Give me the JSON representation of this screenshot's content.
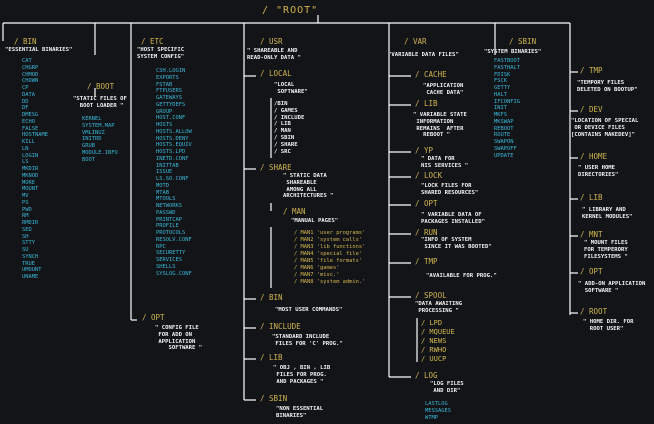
{
  "root": {
    "title": "/   \"ROOT\""
  },
  "bin": {
    "name": "/ BIN",
    "desc": "\"ESSENTIAL BINARIES\"",
    "files_text": "CAT\nCHGRP\nCHMOD\nCHOWN\nCP\nDATA\nDD\nDF\nDMESG\nECHO\nFALSE\nHOSTNAME\nKILL\nLN\nLOGIN\nLS\nMKDIR\nMKNOD\nMORE\nMOUNT\nMV\nPS\nPWD\nRM\nRMDIR\nSED\nSH\nSTTY\nSU\nSYNCH\nTRUE\nUMOUNT\nUNAME"
  },
  "boot": {
    "name": "/ BOOT",
    "desc": "\"STATIC FILES OF\n  BOOT LOADER \"",
    "files_text": "KERNEL\nSYSTEM.MAP\nVMLINUZ\nINITRD\nGRUB\nMODULE.INFO\nBOOT"
  },
  "etc": {
    "name": "/ ETC",
    "desc": "\"HOST SPECIFIC\nSYSTEM CONFIG\"",
    "files_text": "CSH.LOGIN\nEXPORTS\nFSTAB\nFTPUSERS\nGATEWAYS\nGETTYDEFS\nGROUP\nHOST.CONF\nHOSTS\nHOSTS.ALLOW\nHOSTS.DENY\nHOSTS.EQUIV\nHOSTS.LPD\nINETD.CONF\nINITTAB\nISSUE\nLS.SO.CONF\nMOTD\nMTAB\nMTOOLS\nNETWORKS\nPASSWD\nPRINTCAP\nPROFILE\nPROTOCOLS\nRESOLV.CONF\nRPC\nSECURETTY\nSERVICES\nSHELLS\nSYSLOG.CONF",
    "opt": {
      "name": "/ OPT",
      "desc": "\" CONFIG FILE\n FOR ADD ON\n APPLICATION\n    SOFTWARE \""
    }
  },
  "usr": {
    "name": "/ USR",
    "desc": "\" SHAREABLE AND\nREAD-ONLY DATA \"",
    "local": {
      "name": "/ LOCAL",
      "desc": "\"LOCAL\n SOFTWARE\"",
      "subdirs_text": "/BIN\n/ GAMES\n/ INCLUDE\n/ LIB\n/ MAN\n/ SBIN\n/ SHARE\n/ SRC"
    },
    "share": {
      "name": "/ SHARE",
      "desc": "\" STATIC DATA\n SHAREABLE\n AMONG ALL\nARCHITECTURES \"",
      "man": {
        "name": "/ MAN",
        "desc": "\"MANUAL PAGES\"",
        "sections_text": "/ MAN1 'user programs'\n/ MAN2 'system calls'\n/ MAN3 'lib functions'\n/ MAN4 'special file'\n/ MAN5 'file formats'\n/ MAN6 'games'\n/ MAN7 'misc.'\n/ MAN8 'system admin.'"
      }
    },
    "bin": {
      "name": "/ BIN",
      "desc": "\"MOST USER COMMANDS\""
    },
    "include": {
      "name": "/ INCLUDE",
      "desc": "\"STANDARD INCLUDE\n FILES FOR 'C' PROG.\""
    },
    "lib": {
      "name": "/ LIB",
      "desc": "\" OBJ , BIN , LIB\n FILES FOR PROG.\n AND PACKAGES \""
    },
    "sbin": {
      "name": "/ SBIN",
      "desc": "\"NON ESSENTIAL\nBINARIES\""
    }
  },
  "var": {
    "name": "/ VAR",
    "desc": "\"VARIABLE DATA FILES\"",
    "cache": {
      "name": "/ CACHE",
      "desc": "\"APPLICATION\n CACHE DATA\""
    },
    "lib": {
      "name": "/ LIB",
      "desc": "\" VARIABLE STATE\n INFORMATION\n REMAINS  AFTER\n   REBOOT \""
    },
    "yp": {
      "name": "/ YP",
      "desc": "\" DATA FOR\nNIS SERVICES \""
    },
    "lock": {
      "name": "/ LOCK",
      "desc": "\"LOCK FILES FOR\nSHARED RESOURCES\""
    },
    "opt": {
      "name": "/ OPT",
      "desc": "\" VARIABLE DATA OF\nPACKAGES INSTALLED\""
    },
    "run": {
      "name": "/ RUN",
      "desc": "\"INFO OF SYSTEM\n SINCE IT WAS BOOTED\""
    },
    "tmp": {
      "name": "/ TMP",
      "desc": "\"AVAILABLE FOR PROG.\""
    },
    "spool": {
      "name": "/ SPOOL",
      "desc": "\"DATA AWAITING\n PROCESSING \"",
      "subdirs_text": "/ LPD\n/ MQUEUE\n/ NEWS\n/ RWHO\n/ UUCP"
    },
    "log": {
      "name": "/ LOG",
      "desc": "\"LOG FILES\n AND DIR\"",
      "files_text": "LASTLOG\nMESSAGES\nWTMP"
    }
  },
  "sbin": {
    "name": "/ SBIN",
    "desc": "\"SYSTEM BINARIES\"",
    "files_text": "FASTBOOT\nFASTHALT\nFDISK\nFSCK\nGETTY\nHALT\nIFCONFIG\nINIT\nMKFS\nMKSWAP\nREBOOT\nROUTE\nSWAPON\nSWAPOFF\nUPDATE"
  },
  "tmp": {
    "name": "/ TMP",
    "desc": "\"TEMPORY FILES\nDELETED ON BOOTUP\""
  },
  "dev": {
    "name": "/ DEV",
    "desc": "\"LOCATION OF SPECIAL\n OR DEVICE FILES\n[CONTAINS MAKEDEV]\""
  },
  "home": {
    "name": "/ HOME",
    "desc": "\" USER HOME\nDIRECTORIES\""
  },
  "lib": {
    "name": "/ LIB",
    "desc": "\" LIBRARY AND\nKERNEL MODULES\""
  },
  "mnt": {
    "name": "/ MNT",
    "desc": "\" MOUNT FILES\nFOR TEMPERORY\nFILESYSTEMS \""
  },
  "opt": {
    "name": "/ OPT",
    "desc": "\" ADD-ON APPLICATION\n  SOFTWARE \""
  },
  "rootdir": {
    "name": "/ ROOT",
    "desc": "\" HOME DIR. FOR\n  ROOT USER\""
  },
  "colors": {
    "background": "#121417",
    "directory": "#d2b650",
    "description": "#f2f2f2",
    "file": "#39b7d8",
    "connector": "#ffffff"
  }
}
